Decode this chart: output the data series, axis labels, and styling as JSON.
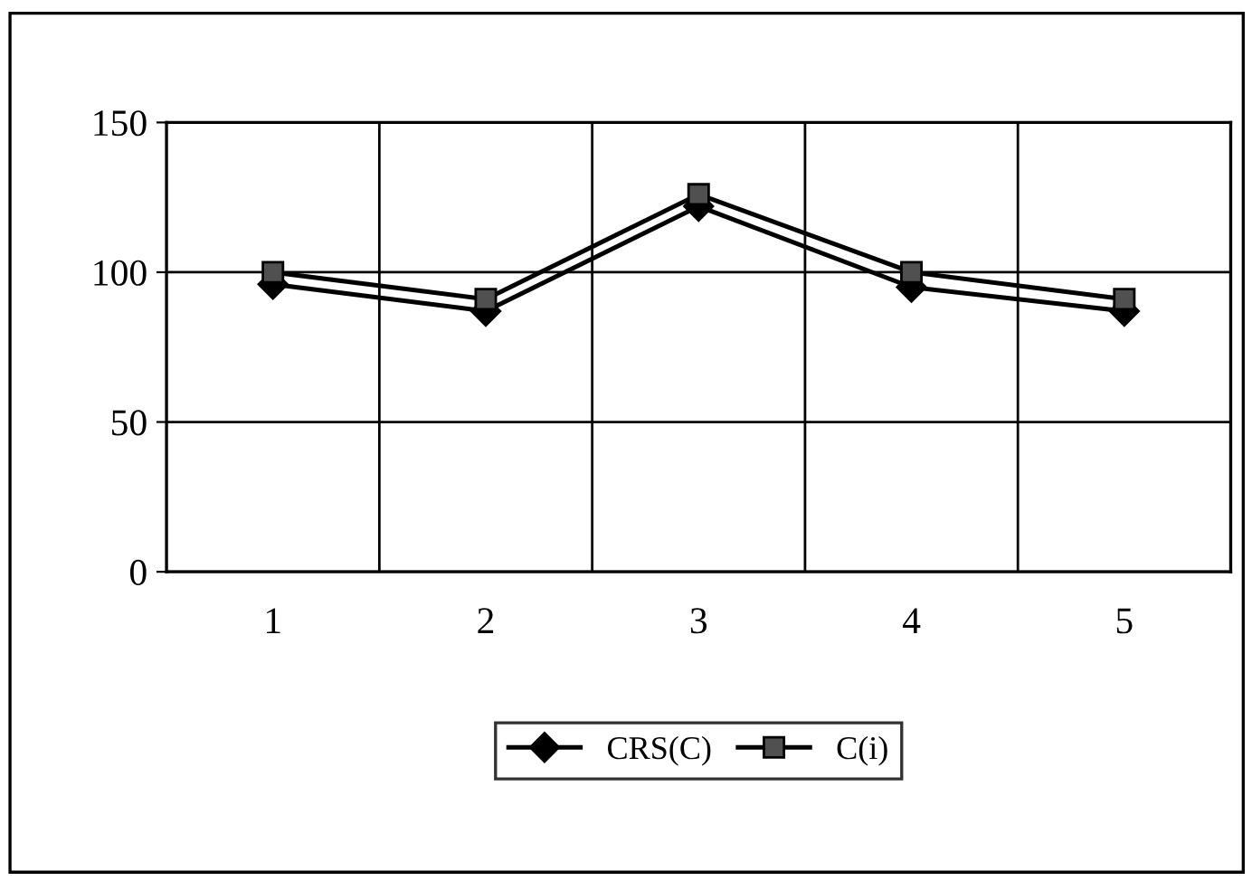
{
  "chart_data": {
    "type": "line",
    "categories": [
      "1",
      "2",
      "3",
      "4",
      "5"
    ],
    "series": [
      {
        "name": "CRS(C)",
        "color": "#000000",
        "marker": "diamond",
        "values": [
          96,
          87,
          122,
          95,
          87
        ]
      },
      {
        "name": "C(i)",
        "color": "#000000",
        "marker": "square",
        "values": [
          100,
          91,
          126,
          100,
          91
        ]
      }
    ],
    "ylim": [
      0,
      150
    ],
    "yticks": [
      0,
      50,
      100,
      150
    ],
    "grid": true,
    "legend": "bottom",
    "line_style": "solid"
  }
}
